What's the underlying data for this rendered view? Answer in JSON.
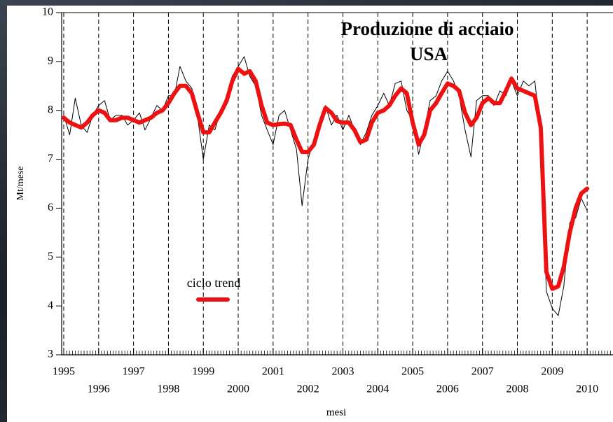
{
  "chart_data": {
    "type": "line",
    "title": "Produzione di acciaio",
    "subtitle": "USA",
    "xlabel": "mesi",
    "ylabel": "Mt/mese",
    "x": [
      1995,
      1995.17,
      1995.33,
      1995.5,
      1995.67,
      1995.83,
      1996,
      1996.17,
      1996.33,
      1996.5,
      1996.67,
      1996.83,
      1997,
      1997.17,
      1997.33,
      1997.5,
      1997.67,
      1997.83,
      1998,
      1998.17,
      1998.33,
      1998.5,
      1998.67,
      1998.83,
      1999,
      1999.17,
      1999.33,
      1999.5,
      1999.67,
      1999.83,
      2000,
      2000.17,
      2000.33,
      2000.5,
      2000.67,
      2000.83,
      2001,
      2001.17,
      2001.33,
      2001.5,
      2001.67,
      2001.83,
      2002,
      2002.17,
      2002.33,
      2002.5,
      2002.67,
      2002.83,
      2003,
      2003.17,
      2003.33,
      2003.5,
      2003.67,
      2003.83,
      2004,
      2004.17,
      2004.33,
      2004.5,
      2004.67,
      2004.83,
      2005,
      2005.17,
      2005.33,
      2005.5,
      2005.67,
      2005.83,
      2006,
      2006.17,
      2006.33,
      2006.5,
      2006.67,
      2006.83,
      2007,
      2007.17,
      2007.33,
      2007.5,
      2007.67,
      2007.83,
      2008,
      2008.17,
      2008.33,
      2008.5,
      2008.67,
      2008.83,
      2009,
      2009.17,
      2009.33,
      2009.5,
      2009.67,
      2009.83,
      2010
    ],
    "series": [
      {
        "color": "#000000",
        "width": 1,
        "values": [
          7.9,
          7.5,
          8.25,
          7.7,
          7.55,
          7.9,
          8.1,
          8.2,
          7.8,
          7.9,
          7.9,
          7.7,
          7.8,
          7.95,
          7.6,
          7.85,
          8.1,
          8.0,
          8.3,
          8.3,
          8.9,
          8.6,
          8.45,
          7.9,
          7.0,
          7.7,
          7.6,
          8.0,
          8.3,
          8.7,
          8.9,
          9.1,
          8.7,
          8.5,
          7.9,
          7.6,
          7.3,
          7.9,
          8.0,
          7.6,
          7.2,
          6.05,
          7.0,
          7.4,
          7.6,
          8.1,
          7.7,
          7.9,
          7.6,
          7.9,
          7.6,
          7.3,
          7.55,
          7.9,
          8.1,
          8.35,
          8.1,
          8.55,
          8.6,
          8.0,
          7.8,
          7.1,
          7.6,
          8.2,
          8.3,
          8.6,
          8.8,
          8.6,
          8.3,
          7.6,
          7.05,
          8.2,
          8.3,
          8.3,
          8.1,
          8.4,
          8.3,
          8.6,
          8.3,
          8.6,
          8.5,
          8.6,
          7.5,
          4.3,
          3.95,
          3.8,
          4.4,
          5.7,
          5.8,
          6.2,
          5.95
        ]
      },
      {
        "name": "ciclo trend",
        "color": "#ee1111",
        "width": 6,
        "values": [
          7.85,
          7.75,
          7.7,
          7.65,
          7.75,
          7.9,
          8.0,
          7.95,
          7.8,
          7.8,
          7.85,
          7.85,
          7.8,
          7.75,
          7.8,
          7.85,
          7.95,
          8.0,
          8.15,
          8.35,
          8.5,
          8.5,
          8.35,
          7.95,
          7.55,
          7.55,
          7.75,
          7.95,
          8.2,
          8.6,
          8.85,
          8.75,
          8.8,
          8.6,
          8.1,
          7.75,
          7.7,
          7.72,
          7.73,
          7.7,
          7.4,
          7.15,
          7.15,
          7.3,
          7.7,
          8.05,
          7.95,
          7.78,
          7.75,
          7.75,
          7.6,
          7.35,
          7.4,
          7.75,
          7.95,
          8.0,
          8.1,
          8.3,
          8.45,
          8.35,
          7.75,
          7.3,
          7.5,
          8.0,
          8.15,
          8.35,
          8.55,
          8.5,
          8.4,
          7.95,
          7.7,
          7.85,
          8.15,
          8.25,
          8.15,
          8.15,
          8.4,
          8.65,
          8.45,
          8.4,
          8.35,
          8.3,
          7.65,
          4.7,
          4.35,
          4.4,
          4.8,
          5.5,
          6.0,
          6.3,
          6.4
        ]
      }
    ],
    "xlim": [
      1994.94,
      2010.74
    ],
    "ylim": [
      3,
      10
    ],
    "xticks": [
      1995,
      1996,
      1997,
      1998,
      1999,
      2000,
      2001,
      2002,
      2003,
      2004,
      2005,
      2006,
      2007,
      2008,
      2009,
      2010
    ],
    "yticks": [
      3,
      4,
      5,
      6,
      7,
      8,
      9,
      10
    ],
    "grid": "x-dashed"
  }
}
